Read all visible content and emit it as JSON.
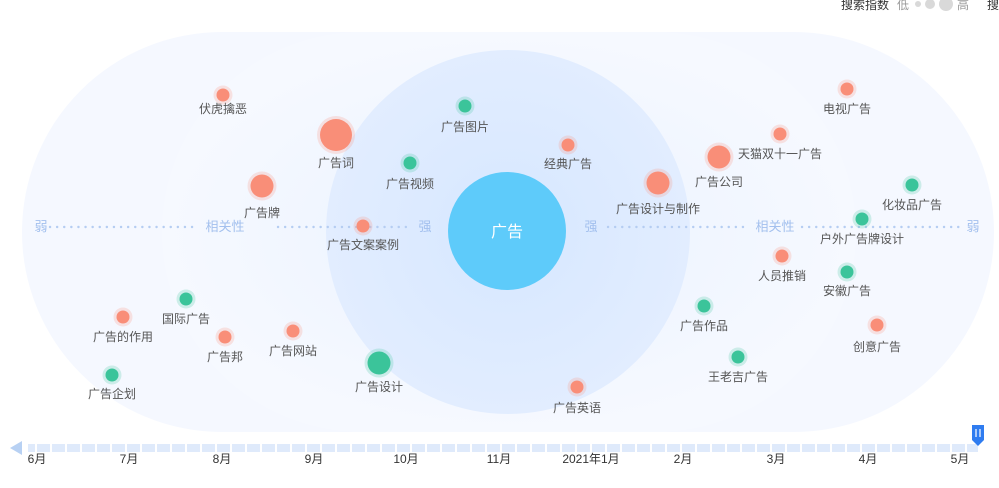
{
  "legend": {
    "label": "搜索指数",
    "low": "低",
    "high": "高",
    "cut_text": "搜"
  },
  "chart_data": {
    "type": "scatter",
    "center": "广告",
    "axis_labels": {
      "weak_left": "弱",
      "relevance_left": "相关性",
      "strong_left": "强",
      "strong_right": "强",
      "relevance_right": "相关性",
      "weak_right": "弱"
    },
    "timeline": [
      "6月",
      "7月",
      "8月",
      "9月",
      "10月",
      "11月",
      "2021年1月",
      "2月",
      "3月",
      "4月",
      "5月"
    ],
    "series_colors": {
      "coral": "#f98e78",
      "green": "#3bc49a",
      "center": "#5ecbfa"
    },
    "items": [
      {
        "label": "伏虎擒恶",
        "color": "coral",
        "size": "small"
      },
      {
        "label": "广告词",
        "color": "coral",
        "size": "large"
      },
      {
        "label": "广告图片",
        "color": "green",
        "size": "small"
      },
      {
        "label": "经典广告",
        "color": "coral",
        "size": "small"
      },
      {
        "label": "广告视频",
        "color": "green",
        "size": "small"
      },
      {
        "label": "广告牌",
        "color": "coral",
        "size": "medium"
      },
      {
        "label": "广告文案案例",
        "color": "coral",
        "size": "small"
      },
      {
        "label": "广告设计与制作",
        "color": "coral",
        "size": "medium"
      },
      {
        "label": "广告公司",
        "color": "coral",
        "size": "medium"
      },
      {
        "label": "天猫双十一广告",
        "color": "coral",
        "size": "small"
      },
      {
        "label": "电视广告",
        "color": "coral",
        "size": "small"
      },
      {
        "label": "化妆品广告",
        "color": "green",
        "size": "small"
      },
      {
        "label": "户外广告牌设计",
        "color": "green",
        "size": "small"
      },
      {
        "label": "人员推销",
        "color": "coral",
        "size": "small"
      },
      {
        "label": "安徽广告",
        "color": "green",
        "size": "small"
      },
      {
        "label": "国际广告",
        "color": "green",
        "size": "small"
      },
      {
        "label": "广告的作用",
        "color": "coral",
        "size": "small"
      },
      {
        "label": "广告邦",
        "color": "coral",
        "size": "small"
      },
      {
        "label": "广告网站",
        "color": "coral",
        "size": "small"
      },
      {
        "label": "广告企划",
        "color": "green",
        "size": "small"
      },
      {
        "label": "广告设计",
        "color": "green",
        "size": "medium"
      },
      {
        "label": "广告作品",
        "color": "green",
        "size": "small"
      },
      {
        "label": "王老吉广告",
        "color": "green",
        "size": "small"
      },
      {
        "label": "创意广告",
        "color": "coral",
        "size": "small"
      },
      {
        "label": "广告英语",
        "color": "coral",
        "size": "small"
      }
    ]
  }
}
